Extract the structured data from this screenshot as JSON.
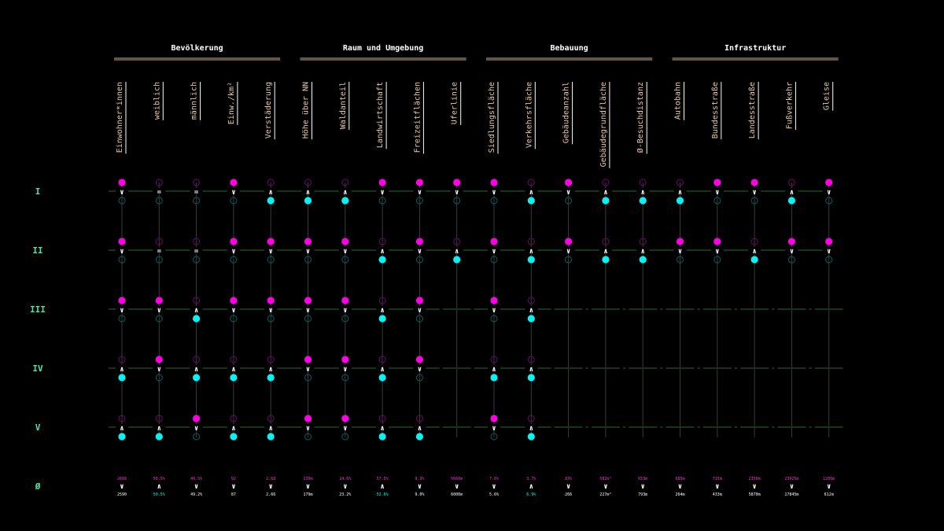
{
  "colors": {
    "background": "#000000",
    "magenta": "#ff00e6",
    "cyan": "#00f5f5",
    "green_line": "#1f6b3a",
    "label": "#e7c9a6",
    "row_label": "#4be3a0"
  },
  "chart_data": {
    "type": "table",
    "groups": [
      {
        "name": "Bevölkerung",
        "columns": [
          0,
          1,
          2,
          3,
          4
        ]
      },
      {
        "name": "Raum und Umgebung",
        "columns": [
          5,
          6,
          7,
          8,
          9
        ]
      },
      {
        "name": "Bebauung",
        "columns": [
          10,
          11,
          12,
          13,
          14
        ]
      },
      {
        "name": "Infrastruktur",
        "columns": [
          15,
          16,
          17,
          18,
          19
        ]
      }
    ],
    "columns": [
      "Einwohner*innen",
      "weiblich",
      "männlich",
      "Einw./km²",
      "Verstäderung",
      "Höhe über NN",
      "Waldanteil",
      "Landwirtschaft",
      "Freizeitflächen",
      "Uferlinie",
      "Siedlungsfläche",
      "Verkehrsfläche",
      "Gebäudeanzahl",
      "Gebäudegrundfläche",
      "Ø-Besuchdistanz",
      "Autobahn",
      "Bundesstraße",
      "Landesstraße",
      "Fußverkehr",
      "Gleise"
    ],
    "rows": [
      "I",
      "II",
      "III",
      "IV",
      "V"
    ],
    "avg_row_label": "Ø",
    "cells": [
      [
        "v",
        "=",
        "=",
        "v",
        "^",
        "^",
        "^",
        "v",
        "v",
        "v",
        "v",
        "^",
        "v",
        "^",
        "^",
        "^",
        "v",
        "v",
        "^",
        "v"
      ],
      [
        "v",
        "=",
        "=",
        "v",
        "v",
        "v",
        "v",
        "^",
        "v",
        "^",
        "v",
        "^",
        "v",
        "^",
        "^",
        "v",
        "v",
        "^",
        "v",
        "v"
      ],
      [
        "v",
        "v",
        "^",
        "v",
        "v",
        "v",
        "v",
        "^",
        "v",
        null,
        "v",
        "^",
        null,
        null,
        null,
        null,
        null,
        null,
        null,
        null
      ],
      [
        "^",
        "v",
        "^",
        "^",
        "^",
        "v",
        "v",
        "^",
        "v",
        null,
        "^",
        "^",
        null,
        null,
        null,
        null,
        null,
        null,
        null,
        null
      ],
      [
        "^",
        "^",
        "v",
        "^",
        "^",
        "v",
        "v",
        "^",
        "^",
        null,
        "v",
        "^",
        null,
        null,
        null,
        null,
        null,
        null,
        null,
        null
      ]
    ],
    "averages": {
      "top": [
        "2668",
        "50.5%",
        "49.5%",
        "92",
        "2.68",
        "239m",
        "24.6%",
        "57.5%",
        "9.3%",
        "5660m",
        "7.6%",
        "3.7%",
        "83%",
        "582m²",
        "653m",
        "685m",
        "715m",
        "2350m",
        "23925m",
        "1200m"
      ],
      "cmp": [
        "v",
        "^",
        "v",
        "v",
        "v",
        "v",
        "v",
        "^",
        "v",
        "v",
        "v",
        "^",
        "v",
        "v",
        "v",
        "v",
        "v",
        "v",
        "v",
        "v"
      ],
      "bottom": [
        "2590",
        "50.5%",
        "49.2%",
        "87",
        "2.66",
        "179m",
        "23.2%",
        "52.6%",
        "9.0%",
        "6000m",
        "5.6%",
        "6.9%",
        "266",
        "227m²",
        "793m",
        "264m",
        "433m",
        "5870m",
        "17845m",
        "612m"
      ]
    }
  }
}
